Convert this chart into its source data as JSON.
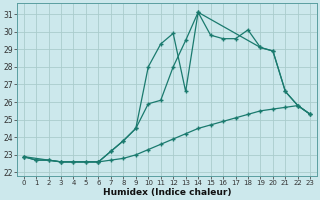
{
  "xlabel": "Humidex (Indice chaleur)",
  "bg_color": "#cce8ec",
  "grid_color": "#aacccc",
  "line_color": "#1a7a6e",
  "xlim": [
    -0.5,
    23.5
  ],
  "ylim": [
    21.8,
    31.6
  ],
  "yticks": [
    22,
    23,
    24,
    25,
    26,
    27,
    28,
    29,
    30,
    31
  ],
  "xticks": [
    0,
    1,
    2,
    3,
    4,
    5,
    6,
    7,
    8,
    9,
    10,
    11,
    12,
    13,
    14,
    15,
    16,
    17,
    18,
    19,
    20,
    21,
    22,
    23
  ],
  "series1_x": [
    0,
    1,
    2,
    3,
    4,
    5,
    6,
    7,
    8,
    9,
    10,
    11,
    12,
    13,
    14,
    15,
    16,
    17,
    18,
    19,
    20,
    21,
    22,
    23
  ],
  "series1_y": [
    22.9,
    22.7,
    22.7,
    22.6,
    22.6,
    22.6,
    22.6,
    23.2,
    23.8,
    24.5,
    28.0,
    29.3,
    29.9,
    26.6,
    31.1,
    29.8,
    29.6,
    29.6,
    30.1,
    29.1,
    28.9,
    26.6,
    25.8,
    25.3
  ],
  "series2_x": [
    0,
    1,
    2,
    3,
    4,
    5,
    6,
    7,
    8,
    9,
    10,
    11,
    12,
    13,
    14,
    15,
    16,
    17,
    18,
    19,
    20,
    21,
    22,
    23
  ],
  "series2_y": [
    22.9,
    22.7,
    22.7,
    22.6,
    22.6,
    22.6,
    22.6,
    22.7,
    22.8,
    23.0,
    23.3,
    23.6,
    23.9,
    24.2,
    24.5,
    24.7,
    24.9,
    25.1,
    25.3,
    25.5,
    25.6,
    25.7,
    25.8,
    25.3
  ],
  "series3_x": [
    0,
    3,
    6,
    7,
    8,
    9,
    10,
    11,
    12,
    13,
    14,
    19,
    20,
    21,
    22,
    23
  ],
  "series3_y": [
    22.9,
    22.6,
    22.6,
    23.2,
    23.8,
    24.5,
    25.9,
    26.1,
    28.0,
    29.5,
    31.1,
    29.1,
    28.9,
    26.6,
    25.8,
    25.3
  ]
}
